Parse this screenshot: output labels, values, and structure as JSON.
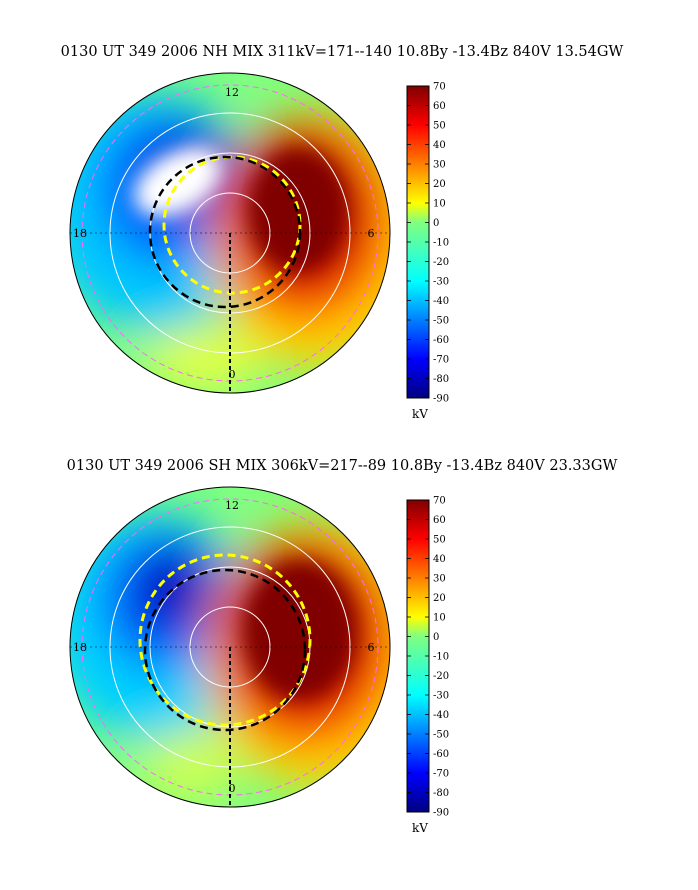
{
  "chart_data": [
    {
      "type": "heatmap",
      "title": "0130 UT 349 2006 NH MIX 311kV=171--140 10.8By -13.4Bz 840V 13.54GW",
      "hemisphere": "NH",
      "projection": "polar",
      "mlt_labels": [
        "12",
        "18",
        "6",
        "0"
      ],
      "colorbar": {
        "range": [
          -90,
          70
        ],
        "ticks": [
          70,
          60,
          50,
          40,
          30,
          20,
          10,
          0,
          -10,
          -20,
          -30,
          -40,
          -50,
          -60,
          -70,
          -80,
          -90
        ],
        "unit": "kV",
        "colormap": "jet"
      },
      "potential_max_kV": 171,
      "potential_min_kV": -140,
      "cross_polar_cap_kV": 311,
      "By": 10.8,
      "Bz": -13.4,
      "solar_wind_V": 840,
      "power_GW": 13.54
    },
    {
      "type": "heatmap",
      "title": "0130 UT 349 2006 SH MIX 306kV=217--89 10.8By -13.4Bz 840V 23.33GW",
      "hemisphere": "SH",
      "projection": "polar",
      "mlt_labels": [
        "12",
        "18",
        "6",
        "0"
      ],
      "colorbar": {
        "range": [
          -90,
          70
        ],
        "ticks": [
          70,
          60,
          50,
          40,
          30,
          20,
          10,
          0,
          -10,
          -20,
          -30,
          -40,
          -50,
          -60,
          -70,
          -80,
          -90
        ],
        "unit": "kV",
        "colormap": "jet"
      },
      "potential_max_kV": 217,
      "potential_min_kV": -89,
      "cross_polar_cap_kV": 306,
      "By": 10.8,
      "Bz": -13.4,
      "solar_wind_V": 840,
      "power_GW": 23.33
    }
  ]
}
